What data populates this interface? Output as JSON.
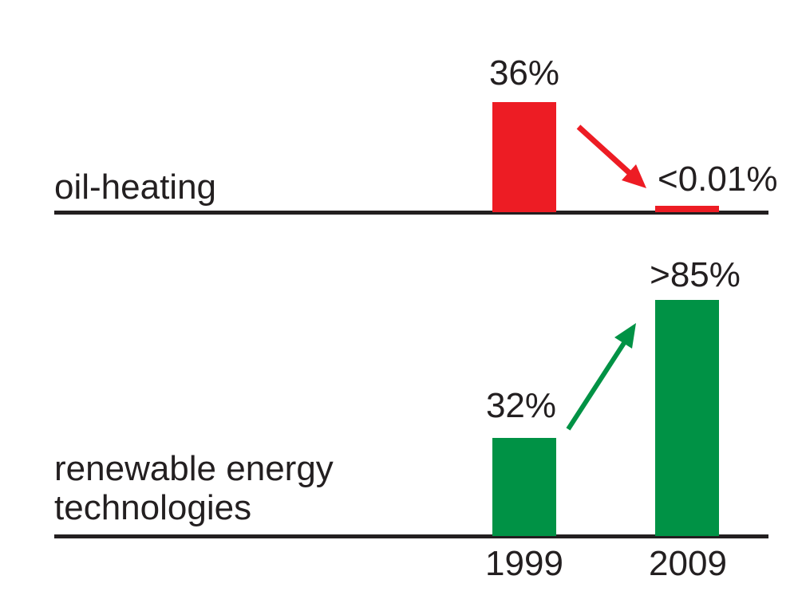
{
  "colors": {
    "red": "#ED1C24",
    "green": "#009245",
    "text": "#231F20",
    "axis": "#231F20",
    "background": "#ffffff"
  },
  "x_axis": {
    "year_left": "1999",
    "year_right": "2009"
  },
  "chart_data": [
    {
      "type": "bar",
      "title": "oil-heating",
      "categories": [
        "1999",
        "2009"
      ],
      "values": [
        36,
        0.01
      ],
      "value_labels": [
        "36%",
        "<0.01%"
      ],
      "bar_color": "#ED1C24",
      "unit": "%",
      "ylim": [
        0,
        100
      ],
      "grid": false,
      "legend": "none",
      "annotation": "red arrow pointing down-right from the 1999 bar to the 2009 bar (sharp decrease)"
    },
    {
      "type": "bar",
      "title": "renewable energy\ntechnologies",
      "categories": [
        "1999",
        "2009"
      ],
      "values": [
        32,
        85
      ],
      "value_labels": [
        "32%",
        ">85%"
      ],
      "bar_color": "#009245",
      "unit": "%",
      "ylim": [
        0,
        100
      ],
      "grid": false,
      "legend": "none",
      "annotation": "green arrow pointing up-right from the 1999 bar to the 2009 bar (sharp increase)"
    }
  ]
}
